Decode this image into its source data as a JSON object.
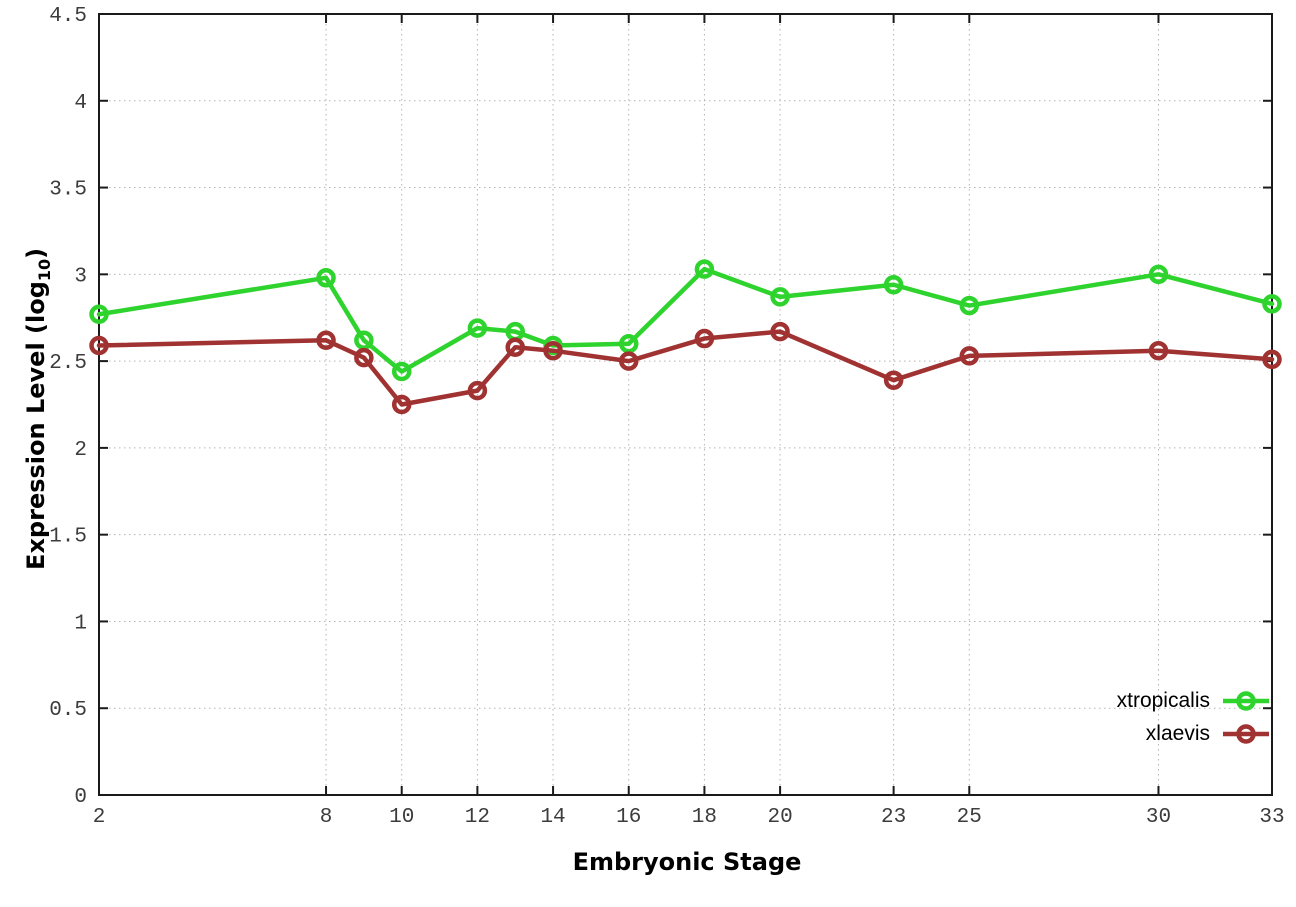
{
  "chart_data": {
    "type": "line",
    "title": "",
    "xlabel": "Embryonic Stage",
    "ylabel": "Expression Level (log10)",
    "ylabel_main": "Expression Level (log",
    "ylabel_sub": "10",
    "ylabel_close": ")",
    "xlim": [
      2,
      33
    ],
    "ylim": [
      0,
      4.5
    ],
    "grid": true,
    "legend_position": "bottom-right",
    "xticks": [
      2,
      8,
      10,
      12,
      14,
      16,
      18,
      20,
      23,
      25,
      30,
      33
    ],
    "xtick_labels": [
      "2",
      "8",
      "10",
      "12",
      "14",
      "16",
      "18",
      "20",
      "23",
      "25",
      "30",
      "33"
    ],
    "yticks": [
      0,
      0.5,
      1,
      1.5,
      2,
      2.5,
      3,
      3.5,
      4,
      4.5
    ],
    "ytick_labels": [
      "0",
      "0.5",
      "1",
      "1.5",
      "2",
      "2.5",
      "3",
      "3.5",
      "4",
      "4.5"
    ],
    "x": [
      2,
      8,
      9,
      10,
      12,
      13,
      14,
      16,
      18,
      20,
      23,
      25,
      30,
      33
    ],
    "series": [
      {
        "name": "xtropicalis",
        "color": "#2ed32e",
        "values": [
          2.77,
          2.98,
          2.62,
          2.44,
          2.69,
          2.67,
          2.59,
          2.6,
          3.03,
          2.87,
          2.94,
          2.82,
          3.0,
          2.83
        ]
      },
      {
        "name": "xlaevis",
        "color": "#a03232",
        "values": [
          2.59,
          2.62,
          2.52,
          2.25,
          2.33,
          2.58,
          2.56,
          2.5,
          2.63,
          2.67,
          2.39,
          2.53,
          2.56,
          2.51
        ]
      }
    ],
    "style": {
      "grid_color": "#b4b4b4",
      "axis_color": "#1a1a1a",
      "tick_label_color": "#3c3c3c",
      "background": "#ffffff"
    }
  }
}
